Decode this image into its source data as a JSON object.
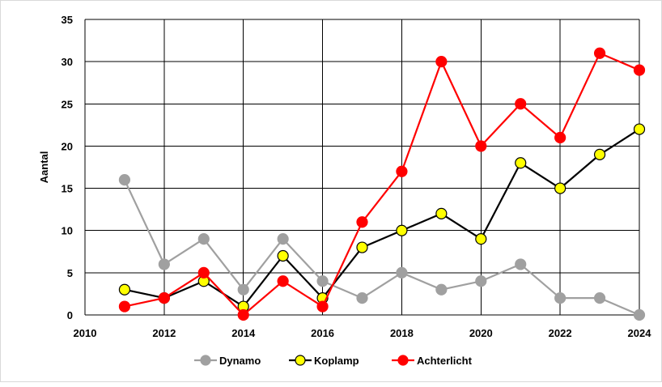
{
  "chart_data": {
    "type": "line",
    "title": "",
    "xlabel": "",
    "ylabel": "Aantal",
    "xlim": [
      2010,
      2024
    ],
    "ylim": [
      0,
      35
    ],
    "x_ticks": [
      2010,
      2012,
      2014,
      2016,
      2018,
      2020,
      2022,
      2024
    ],
    "y_ticks": [
      0,
      5,
      10,
      15,
      20,
      25,
      30,
      35
    ],
    "grid": true,
    "legend_position": "bottom",
    "x": [
      2011,
      2012,
      2013,
      2014,
      2015,
      2016,
      2017,
      2018,
      2019,
      2020,
      2021,
      2022,
      2023,
      2024
    ],
    "series": [
      {
        "name": "Dynamo",
        "line_color": "#a0a0a0",
        "marker_color": "#a0a0a0",
        "marker_edge": "#a0a0a0",
        "values": [
          16,
          6,
          9,
          3,
          9,
          4,
          2,
          5,
          3,
          4,
          6,
          2,
          2,
          0
        ]
      },
      {
        "name": "Koplamp",
        "line_color": "#000000",
        "marker_color": "#ffff00",
        "marker_edge": "#000000",
        "values": [
          3,
          2,
          4,
          1,
          7,
          2,
          8,
          10,
          12,
          9,
          18,
          15,
          19,
          22
        ]
      },
      {
        "name": "Achterlicht",
        "line_color": "#ff0000",
        "marker_color": "#ff0000",
        "marker_edge": "#ff0000",
        "values": [
          1,
          2,
          5,
          0,
          4,
          1,
          11,
          17,
          30,
          20,
          25,
          21,
          31,
          29
        ]
      }
    ]
  }
}
